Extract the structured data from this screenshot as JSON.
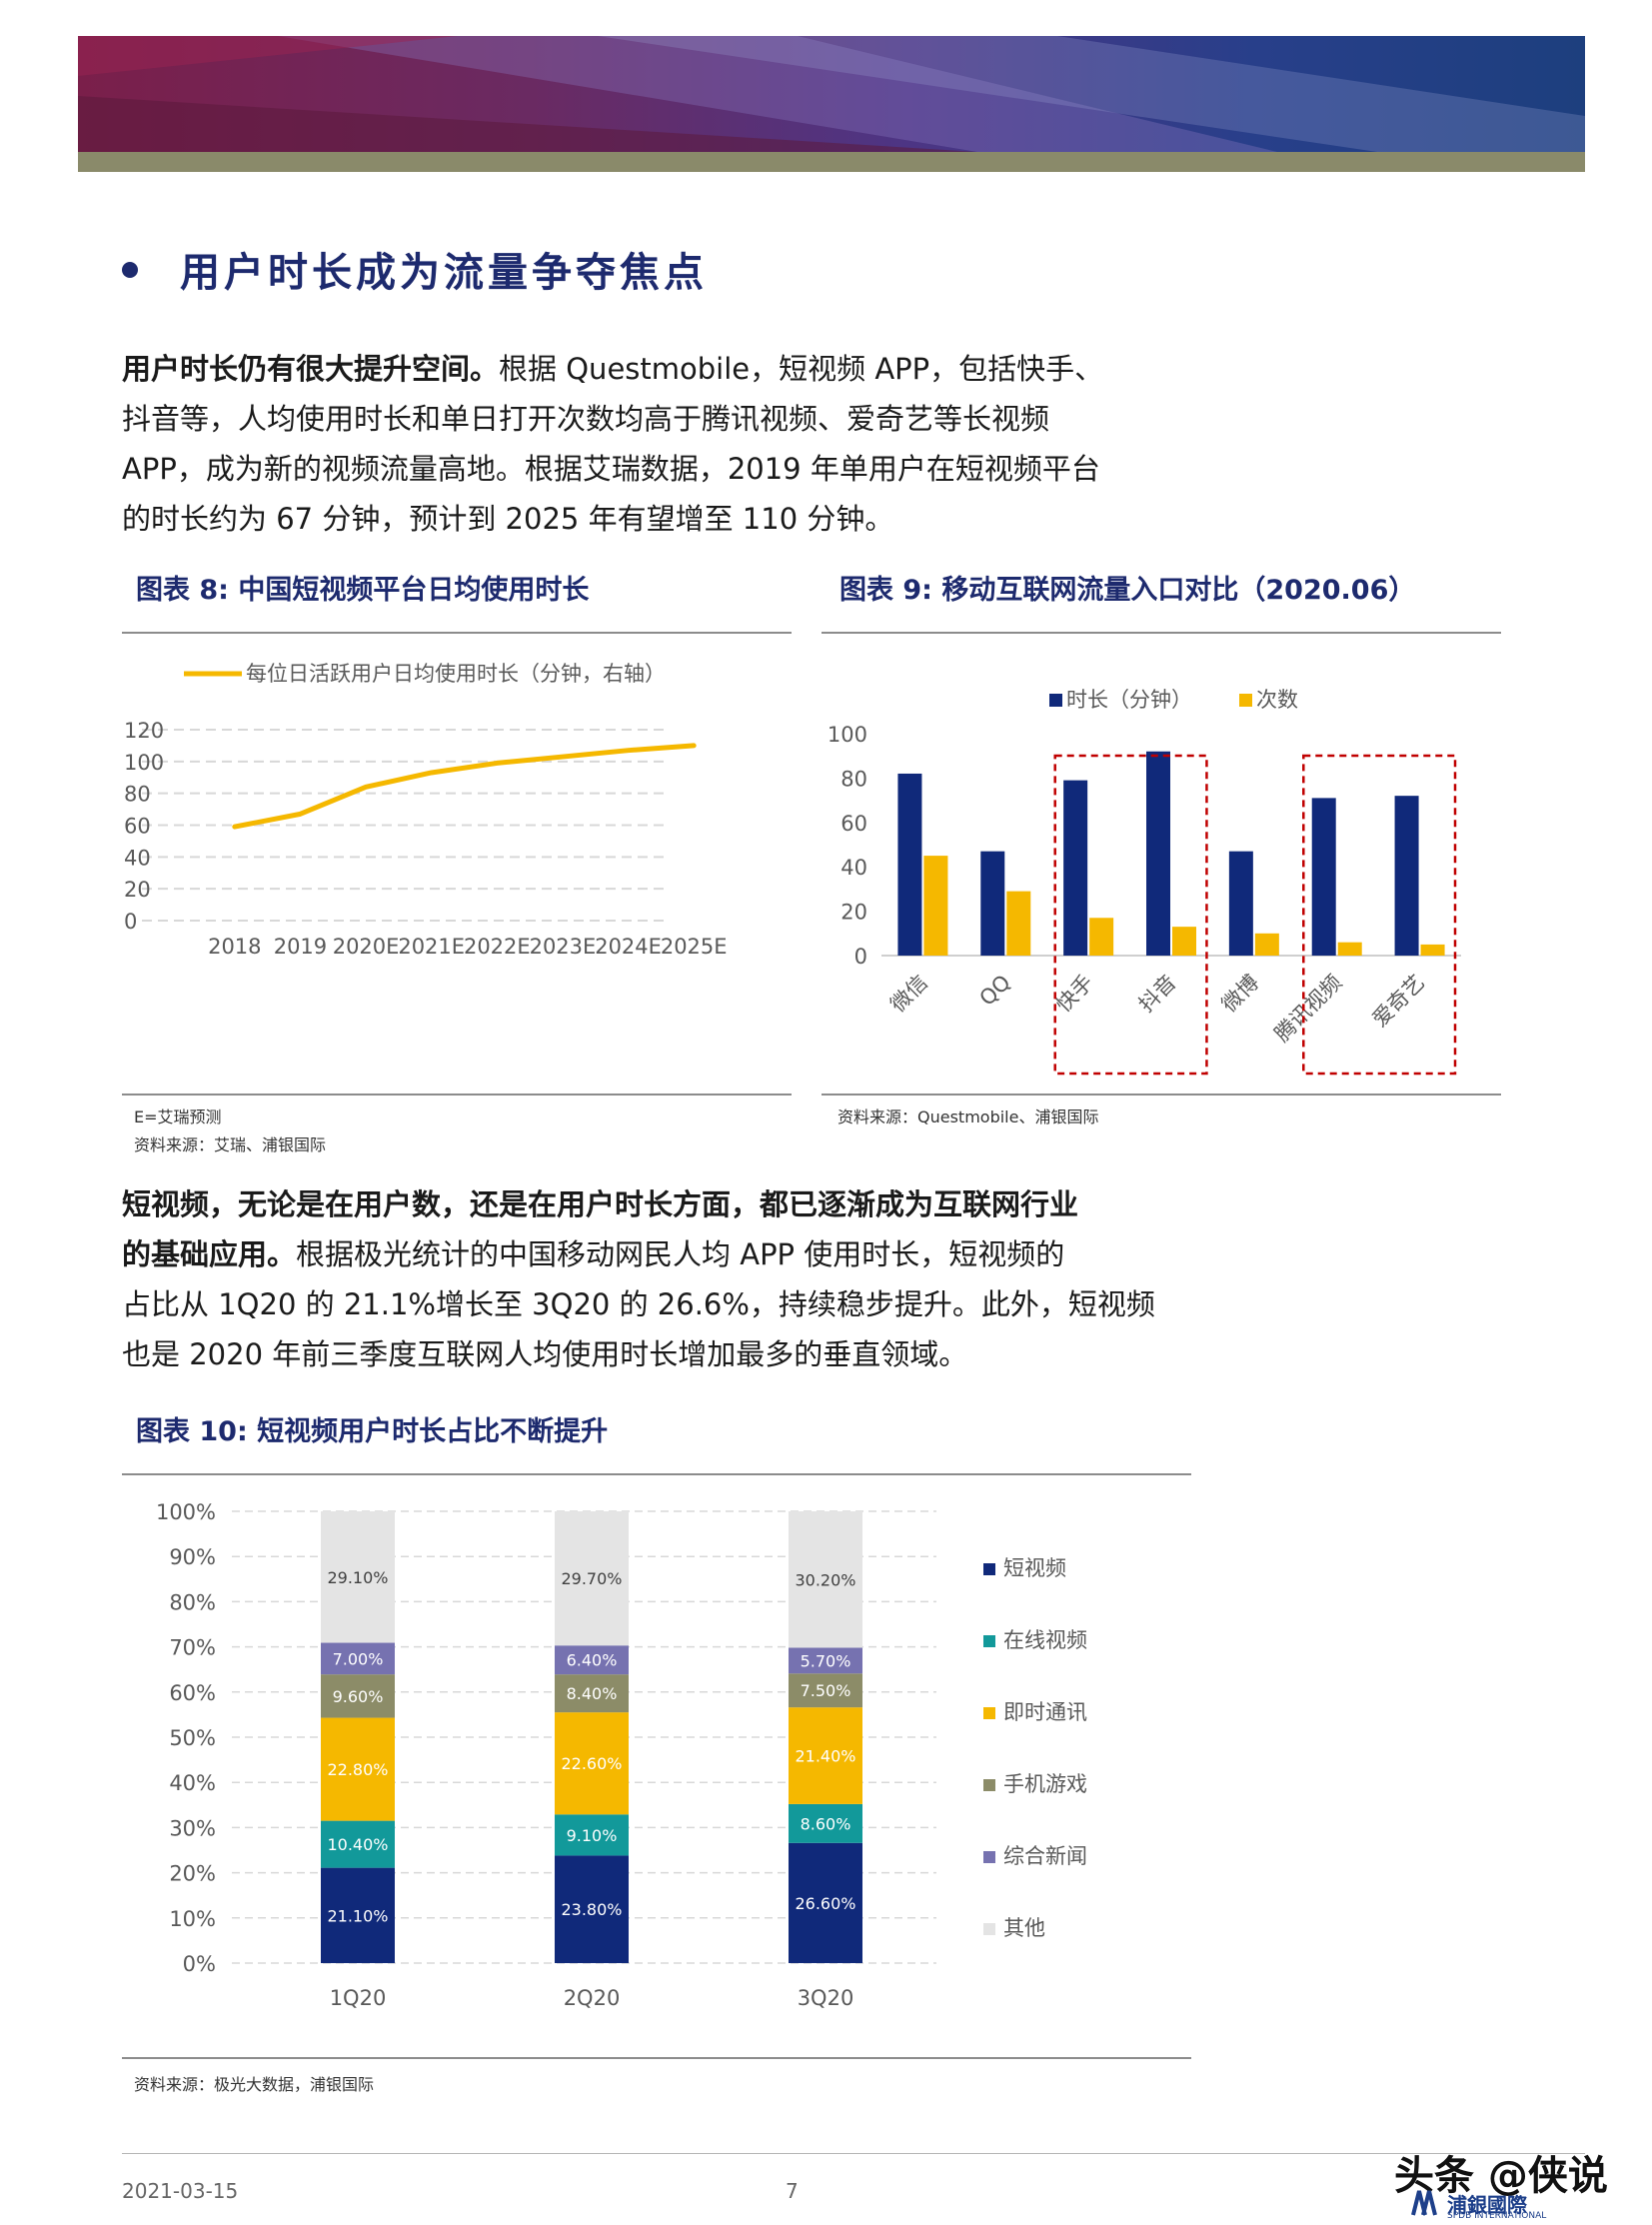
{
  "section": {
    "title": "用户时长成为流量争夺焦点"
  },
  "para1": {
    "bold": "用户时长仍有很大提升空间。",
    "line1": "根据 Questmobile，短视频 APP，包括快手、",
    "line2": "抖音等，人均使用时长和单日打开次数均高于腾讯视频、爱奇艺等长视频",
    "line3": "APP，成为新的视频流量高地。根据艾瑞数据，2019 年单用户在短视频平台",
    "line4": "的时长约为 67 分钟，预计到 2025 年有望增至 110 分钟。"
  },
  "fig8": {
    "title": "图表 8: 中国短视频平台日均使用时长",
    "note1": "E=艾瑞预测",
    "note2": "资料来源：艾瑞、浦银国际"
  },
  "fig9": {
    "title": "图表 9: 移动互联网流量入口对比（2020.06）",
    "note": "资料来源：Questmobile、浦银国际"
  },
  "para2": {
    "bold1": "短视频，无论是在用户数，还是在用户时长方面，都已逐渐成为互联网行业",
    "bold2": "的基础应用。",
    "line2": "根据极光统计的中国移动网民人均 APP 使用时长，短视频的",
    "line3": "占比从 1Q20 的 21.1%增长至 3Q20 的 26.6%，持续稳步提升。此外，短视频",
    "line4": "也是 2020 年前三季度互联网人均使用时长增加最多的垂直领域。"
  },
  "fig10": {
    "title": "图表 10: 短视频用户时长占比不断提升",
    "note": "资料来源：极光大数据，浦银国际"
  },
  "footer": {
    "date": "2021-03-15",
    "page": "7",
    "watermark": "头条 @侠说",
    "logo": "浦銀國際",
    "logo_sub": "SPDB INTERNATIONAL"
  },
  "chart_data": [
    {
      "type": "line",
      "categories": [
        "2018",
        "2019",
        "2020E",
        "2021E",
        "2022E",
        "2023E",
        "2024E",
        "2025E"
      ],
      "series": [
        {
          "name": "每位日活跃用户日均使用时长（分钟，右轴）",
          "values": [
            59,
            67,
            84,
            93,
            99,
            103,
            107,
            110
          ],
          "color": "#f5b800"
        }
      ],
      "yticks": [
        "0",
        "20",
        "40",
        "60",
        "80",
        "100",
        "120"
      ],
      "ylim": [
        0,
        120
      ],
      "grid": true,
      "legend": "top"
    },
    {
      "type": "bar",
      "categories": [
        "微信",
        "QQ",
        "快手",
        "抖音",
        "微博",
        "腾讯视频",
        "爱奇艺"
      ],
      "series": [
        {
          "name": "时长（分钟）",
          "values": [
            82,
            47,
            79,
            92,
            47,
            71,
            72
          ],
          "color": "#10297a"
        },
        {
          "name": "次数",
          "values": [
            45,
            29,
            17,
            13,
            10,
            6,
            5
          ],
          "color": "#f5b800"
        }
      ],
      "yticks": [
        "0",
        "20",
        "40",
        "60",
        "80",
        "100"
      ],
      "ylim": [
        0,
        100
      ],
      "grid": false,
      "legend": "top",
      "highlight_groups": [
        [
          "快手",
          "抖音"
        ],
        [
          "腾讯视频",
          "爱奇艺"
        ]
      ]
    },
    {
      "type": "bar",
      "stacked": true,
      "categories": [
        "1Q20",
        "2Q20",
        "3Q20"
      ],
      "series": [
        {
          "name": "短视频",
          "values": [
            21.1,
            23.8,
            26.6
          ],
          "labels": [
            "21.10%",
            "23.80%",
            "26.60%"
          ],
          "color": "#10297a"
        },
        {
          "name": "在线视频",
          "values": [
            10.4,
            9.1,
            8.6
          ],
          "labels": [
            "10.40%",
            "9.10%",
            "8.60%"
          ],
          "color": "#12999a"
        },
        {
          "name": "即时通讯",
          "values": [
            22.8,
            22.6,
            21.4
          ],
          "labels": [
            "22.80%",
            "22.60%",
            "21.40%"
          ],
          "color": "#f5b800"
        },
        {
          "name": "手机游戏",
          "values": [
            9.6,
            8.4,
            7.5
          ],
          "labels": [
            "9.60%",
            "8.40%",
            "7.50%"
          ],
          "color": "#8c8c68"
        },
        {
          "name": "综合新闻",
          "values": [
            7.0,
            6.4,
            5.7
          ],
          "labels": [
            "7.00%",
            "6.40%",
            "5.70%"
          ],
          "color": "#7672b0"
        },
        {
          "name": "其他",
          "values": [
            29.1,
            29.7,
            30.2
          ],
          "labels": [
            "29.10%",
            "29.70%",
            "30.20%"
          ],
          "color": "#e4e4e4"
        }
      ],
      "yticks": [
        "0%",
        "10%",
        "20%",
        "30%",
        "40%",
        "50%",
        "60%",
        "70%",
        "80%",
        "90%",
        "100%"
      ],
      "ylim": [
        0,
        100
      ],
      "grid": true,
      "legend": "right"
    }
  ]
}
